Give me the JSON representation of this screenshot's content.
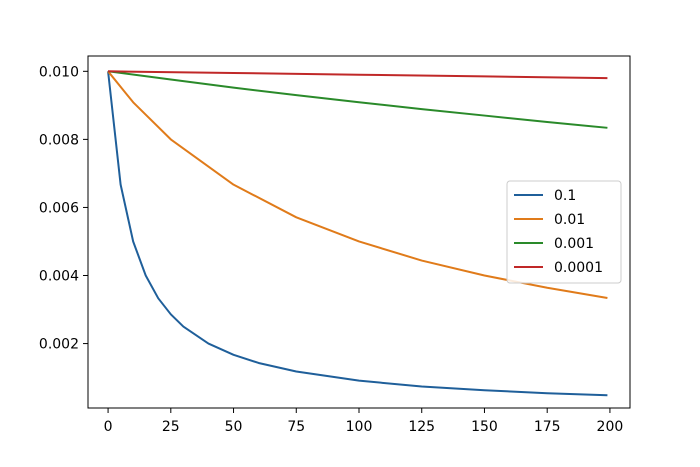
{
  "chart_data": {
    "type": "line",
    "title": "",
    "xlabel": "",
    "ylabel": "",
    "xlim": [
      -8,
      208
    ],
    "ylim": [
      0.000107,
      0.01045
    ],
    "x_ticks": [
      0,
      25,
      50,
      75,
      100,
      125,
      150,
      175,
      200
    ],
    "x_tick_labels": [
      "0",
      "25",
      "50",
      "75",
      "100",
      "125",
      "150",
      "175",
      "200"
    ],
    "y_ticks": [
      0.002,
      0.004,
      0.006,
      0.008,
      0.01
    ],
    "y_tick_labels": [
      "0.002",
      "0.004",
      "0.006",
      "0.008",
      "0.010"
    ],
    "grid": false,
    "legend": {
      "placement": "center-right",
      "entries": [
        "0.1",
        "0.01",
        "0.001",
        "0.0001"
      ]
    },
    "series": [
      {
        "name": "0.1",
        "color": "#1f5f9a",
        "x": [
          0,
          5,
          10,
          15,
          20,
          25,
          30,
          40,
          50,
          60,
          75,
          100,
          125,
          150,
          175,
          199
        ],
        "y": [
          0.01,
          0.00667,
          0.005,
          0.004,
          0.00333,
          0.00286,
          0.0025,
          0.002,
          0.00167,
          0.00143,
          0.00118,
          0.00091,
          0.00074,
          0.00063,
          0.00054,
          0.00048
        ]
      },
      {
        "name": "0.01",
        "color": "#e07b1a",
        "x": [
          0,
          10,
          25,
          50,
          75,
          100,
          125,
          150,
          175,
          199
        ],
        "y": [
          0.01,
          0.00909,
          0.008,
          0.00667,
          0.00571,
          0.005,
          0.00444,
          0.004,
          0.00364,
          0.00334
        ]
      },
      {
        "name": "0.001",
        "color": "#2a8a2a",
        "x": [
          0,
          25,
          50,
          75,
          100,
          125,
          150,
          175,
          199
        ],
        "y": [
          0.01,
          0.00976,
          0.00952,
          0.0093,
          0.00909,
          0.00889,
          0.0087,
          0.00851,
          0.00834
        ]
      },
      {
        "name": "0.0001",
        "color": "#c02828",
        "x": [
          0,
          50,
          100,
          150,
          199
        ],
        "y": [
          0.01,
          0.00995,
          0.0099,
          0.00985,
          0.0098
        ]
      }
    ]
  }
}
